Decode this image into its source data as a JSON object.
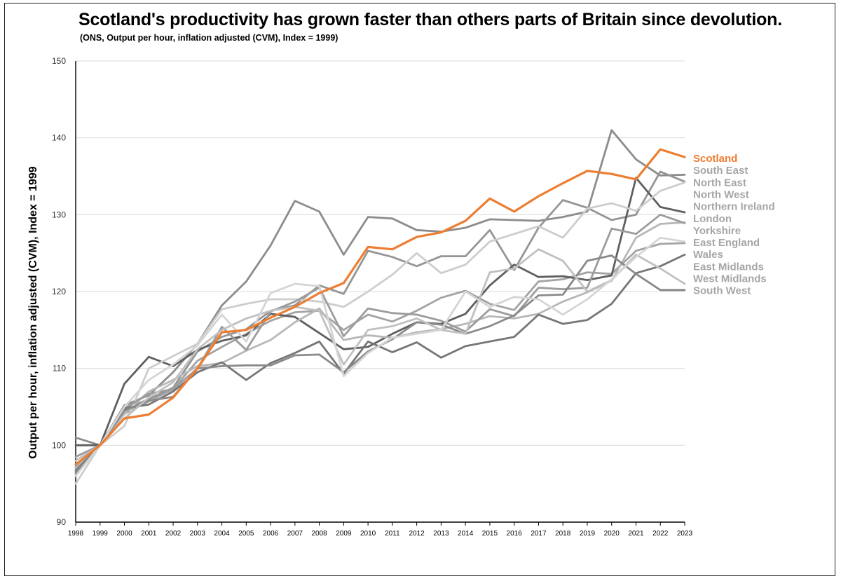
{
  "chart_data": {
    "type": "line",
    "title": "Scotland's productivity has grown faster than others parts of Britain since devolution.",
    "subtitle": "(ONS, Output per hour, inflation adjusted (CVM), Index = 1999)",
    "xlabel": "",
    "ylabel": "Output per hour, inflation adjusted (CVM), Index = 1999",
    "ylim": [
      90,
      150
    ],
    "yticks": [
      90,
      100,
      110,
      120,
      130,
      140,
      150
    ],
    "grid": true,
    "legend_position": "right",
    "x": [
      "1998",
      "1999",
      "2000",
      "2001",
      "2002",
      "2003",
      "2004",
      "2005",
      "2006",
      "2007",
      "2008",
      "2009",
      "2010",
      "2011",
      "2012",
      "2013",
      "2014",
      "2015",
      "2016",
      "2017",
      "2018",
      "2019",
      "2020",
      "2021",
      "2022",
      "2023"
    ],
    "series": [
      {
        "name": "South East",
        "color": "#8c8c8c",
        "highlight": false,
        "values": [
          101.0,
          100,
          105.2,
          106.5,
          109.5,
          113.2,
          118.2,
          121.3,
          126.0,
          131.8,
          130.4,
          124.8,
          129.7,
          129.5,
          128.0,
          127.8,
          128.3,
          129.4,
          129.3,
          129.2,
          129.7,
          130.4,
          141.0,
          137.2,
          135.1,
          135.2
        ]
      },
      {
        "name": "North East",
        "color": "#959595",
        "highlight": false,
        "values": [
          96.3,
          100,
          104.7,
          106.0,
          107.5,
          112.2,
          114.1,
          115.1,
          117.5,
          118.2,
          120.8,
          119.7,
          125.3,
          124.5,
          123.3,
          124.6,
          124.6,
          128.0,
          122.8,
          128.3,
          131.9,
          130.9,
          129.3,
          130.0,
          135.6,
          134.3
        ]
      },
      {
        "name": "North West",
        "color": "#a3a3a3",
        "highlight": false,
        "values": [
          97.2,
          100,
          104.1,
          105.7,
          107.3,
          111.0,
          112.8,
          114.5,
          116.2,
          117.3,
          117.5,
          115.0,
          117.0,
          116.1,
          117.5,
          119.2,
          120.1,
          118.4,
          117.6,
          121.3,
          121.6,
          122.5,
          122.3,
          125.3,
          126.2,
          126.3
        ]
      },
      {
        "name": "Northern Ireland",
        "color": "#5f5f5f",
        "highlight": false,
        "values": [
          100.0,
          100,
          108.0,
          111.5,
          110.3,
          112.4,
          113.6,
          114.3,
          117.1,
          116.7,
          114.6,
          112.5,
          112.8,
          114.5,
          116.0,
          115.8,
          117.1,
          120.8,
          123.5,
          121.9,
          122.0,
          121.5,
          122.1,
          134.8,
          131.0,
          130.3
        ]
      },
      {
        "name": "London",
        "color": "#b7b7b7",
        "highlight": false,
        "values": [
          97.0,
          100,
          104.1,
          107.0,
          108.5,
          110.3,
          110.7,
          112.3,
          113.7,
          116.0,
          117.8,
          113.7,
          114.3,
          114.0,
          114.7,
          115.1,
          115.8,
          116.8,
          116.5,
          117.1,
          118.7,
          119.9,
          121.4,
          127.0,
          128.8,
          129.0
        ]
      },
      {
        "name": "Yorkshire",
        "color": "#cdcdcd",
        "highlight": false,
        "values": [
          95.0,
          100,
          102.5,
          110.0,
          111.6,
          113.2,
          117.7,
          118.4,
          119.0,
          119.0,
          118.7,
          118.0,
          120.0,
          122.2,
          125.0,
          122.4,
          123.5,
          126.5,
          127.5,
          128.5,
          127.0,
          130.8,
          131.5,
          130.5,
          133.1,
          134.2
        ]
      },
      {
        "name": "East England",
        "color": "#9c9c9c",
        "highlight": false,
        "values": [
          98.5,
          100,
          104.8,
          106.7,
          107.3,
          110.0,
          115.4,
          112.4,
          117.4,
          118.7,
          120.5,
          114.2,
          117.8,
          117.2,
          117.0,
          116.2,
          114.8,
          117.7,
          116.8,
          120.5,
          120.3,
          120.5,
          128.2,
          127.5,
          130.0,
          128.9
        ]
      },
      {
        "name": "Wales",
        "color": "#767676",
        "highlight": false,
        "values": [
          96.7,
          100,
          104.8,
          105.3,
          107.0,
          109.5,
          110.8,
          108.5,
          110.7,
          112.0,
          113.5,
          109.3,
          113.5,
          112.1,
          113.4,
          111.4,
          112.9,
          113.5,
          114.1,
          117.0,
          115.8,
          116.3,
          118.4,
          122.4,
          123.3,
          124.8
        ]
      },
      {
        "name": "East Midlands",
        "color": "#8a8a8a",
        "highlight": false,
        "values": [
          96.5,
          100,
          104.5,
          105.8,
          106.3,
          110.0,
          110.3,
          110.4,
          110.4,
          111.7,
          111.8,
          109.5,
          112.2,
          113.8,
          116.0,
          115.7,
          114.5,
          115.5,
          116.9,
          119.5,
          119.6,
          124.0,
          124.7,
          122.3,
          120.2,
          120.2
        ]
      },
      {
        "name": "West Midlands",
        "color": "#c0c0c0",
        "highlight": false,
        "values": [
          98.0,
          100,
          103.5,
          106.2,
          108.2,
          112.5,
          115.0,
          116.5,
          117.5,
          118.0,
          117.5,
          110.5,
          115.0,
          115.5,
          116.5,
          115.0,
          114.5,
          122.5,
          123.0,
          125.5,
          124.0,
          120.0,
          121.5,
          124.8,
          123.0,
          121.0
        ]
      },
      {
        "name": "South West",
        "color": "#d5d5d5",
        "highlight": false,
        "values": [
          96.0,
          100,
          105.0,
          108.5,
          110.5,
          113.0,
          117.0,
          113.5,
          119.8,
          121.0,
          120.7,
          109.0,
          112.0,
          114.0,
          114.5,
          115.0,
          120.0,
          118.0,
          119.3,
          119.0,
          117.0,
          119.0,
          121.6,
          124.5,
          127.0,
          126.5
        ]
      },
      {
        "name": "Scotland",
        "color": "#ed7d31",
        "highlight": true,
        "values": [
          97.5,
          100,
          103.5,
          104.0,
          106.2,
          110.0,
          114.7,
          115.0,
          116.6,
          118.0,
          119.8,
          121.1,
          125.8,
          125.5,
          127.1,
          127.7,
          129.2,
          132.1,
          130.4,
          132.4,
          134.1,
          135.7,
          135.3,
          134.6,
          138.5,
          137.5
        ]
      }
    ],
    "legend": [
      {
        "label": "Scotland",
        "color": "#ed7d31"
      },
      {
        "label": "South East",
        "color": "#a6a6a6"
      },
      {
        "label": "North East",
        "color": "#a6a6a6"
      },
      {
        "label": "North West",
        "color": "#a6a6a6"
      },
      {
        "label": "Northern Ireland",
        "color": "#a6a6a6"
      },
      {
        "label": "London",
        "color": "#a6a6a6"
      },
      {
        "label": "Yorkshire",
        "color": "#a6a6a6"
      },
      {
        "label": "East England",
        "color": "#a6a6a6"
      },
      {
        "label": "Wales",
        "color": "#a6a6a6"
      },
      {
        "label": "East Midlands",
        "color": "#a6a6a6"
      },
      {
        "label": "West Midlands",
        "color": "#a6a6a6"
      },
      {
        "label": "South West",
        "color": "#a6a6a6"
      }
    ]
  }
}
